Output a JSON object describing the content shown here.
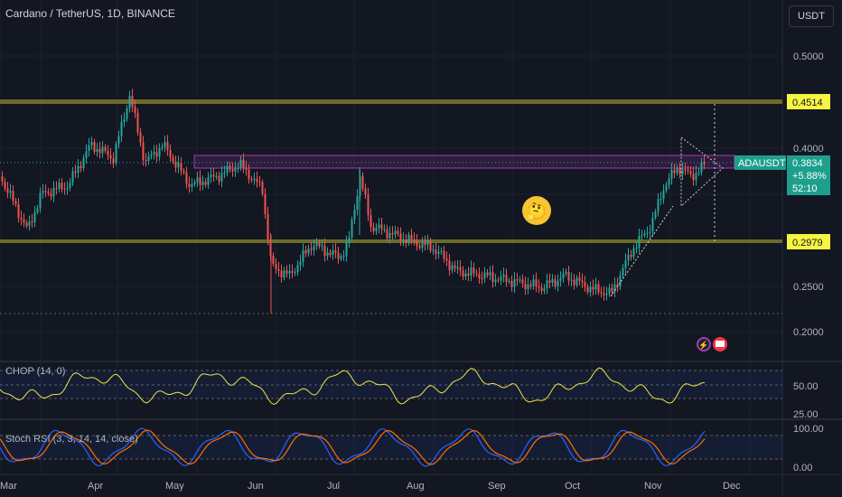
{
  "header": {
    "title": "Cardano / TetherUS, 1D, BINANCE",
    "currency_button": "USDT"
  },
  "colors": {
    "background": "#131722",
    "up": "#26a69a",
    "down": "#ef5350",
    "level_line": "#6b6b2a",
    "zone": "#a43bb3",
    "chop_line": "#f0e442",
    "stoch_k": "#2962ff",
    "stoch_d": "#ff6d00",
    "price_tag": "#1e9f8e",
    "level_tag": "#f5f542"
  },
  "price_axis": {
    "ticks": [
      "0.5000",
      "0.4000",
      "0.2500",
      "0.2000"
    ],
    "level_labels": [
      "0.4514",
      "0.2979"
    ]
  },
  "price_tag": {
    "symbol": "ADAUSDT",
    "price": "0.3834",
    "change": "+5.88%",
    "countdown": "52:10"
  },
  "time_axis": [
    "Mar",
    "Apr",
    "May",
    "Jun",
    "Jul",
    "Aug",
    "Sep",
    "Oct",
    "Nov",
    "Dec"
  ],
  "indicators": {
    "chop": {
      "label": "CHOP (14, 0)",
      "ticks": [
        "50.00",
        "25.00"
      ]
    },
    "stoch": {
      "label": "Stoch RSI (3, 3, 14, 14, close)",
      "ticks": [
        "100.00",
        "0.00"
      ]
    }
  },
  "annotations": {
    "emoji": "🤔"
  }
}
